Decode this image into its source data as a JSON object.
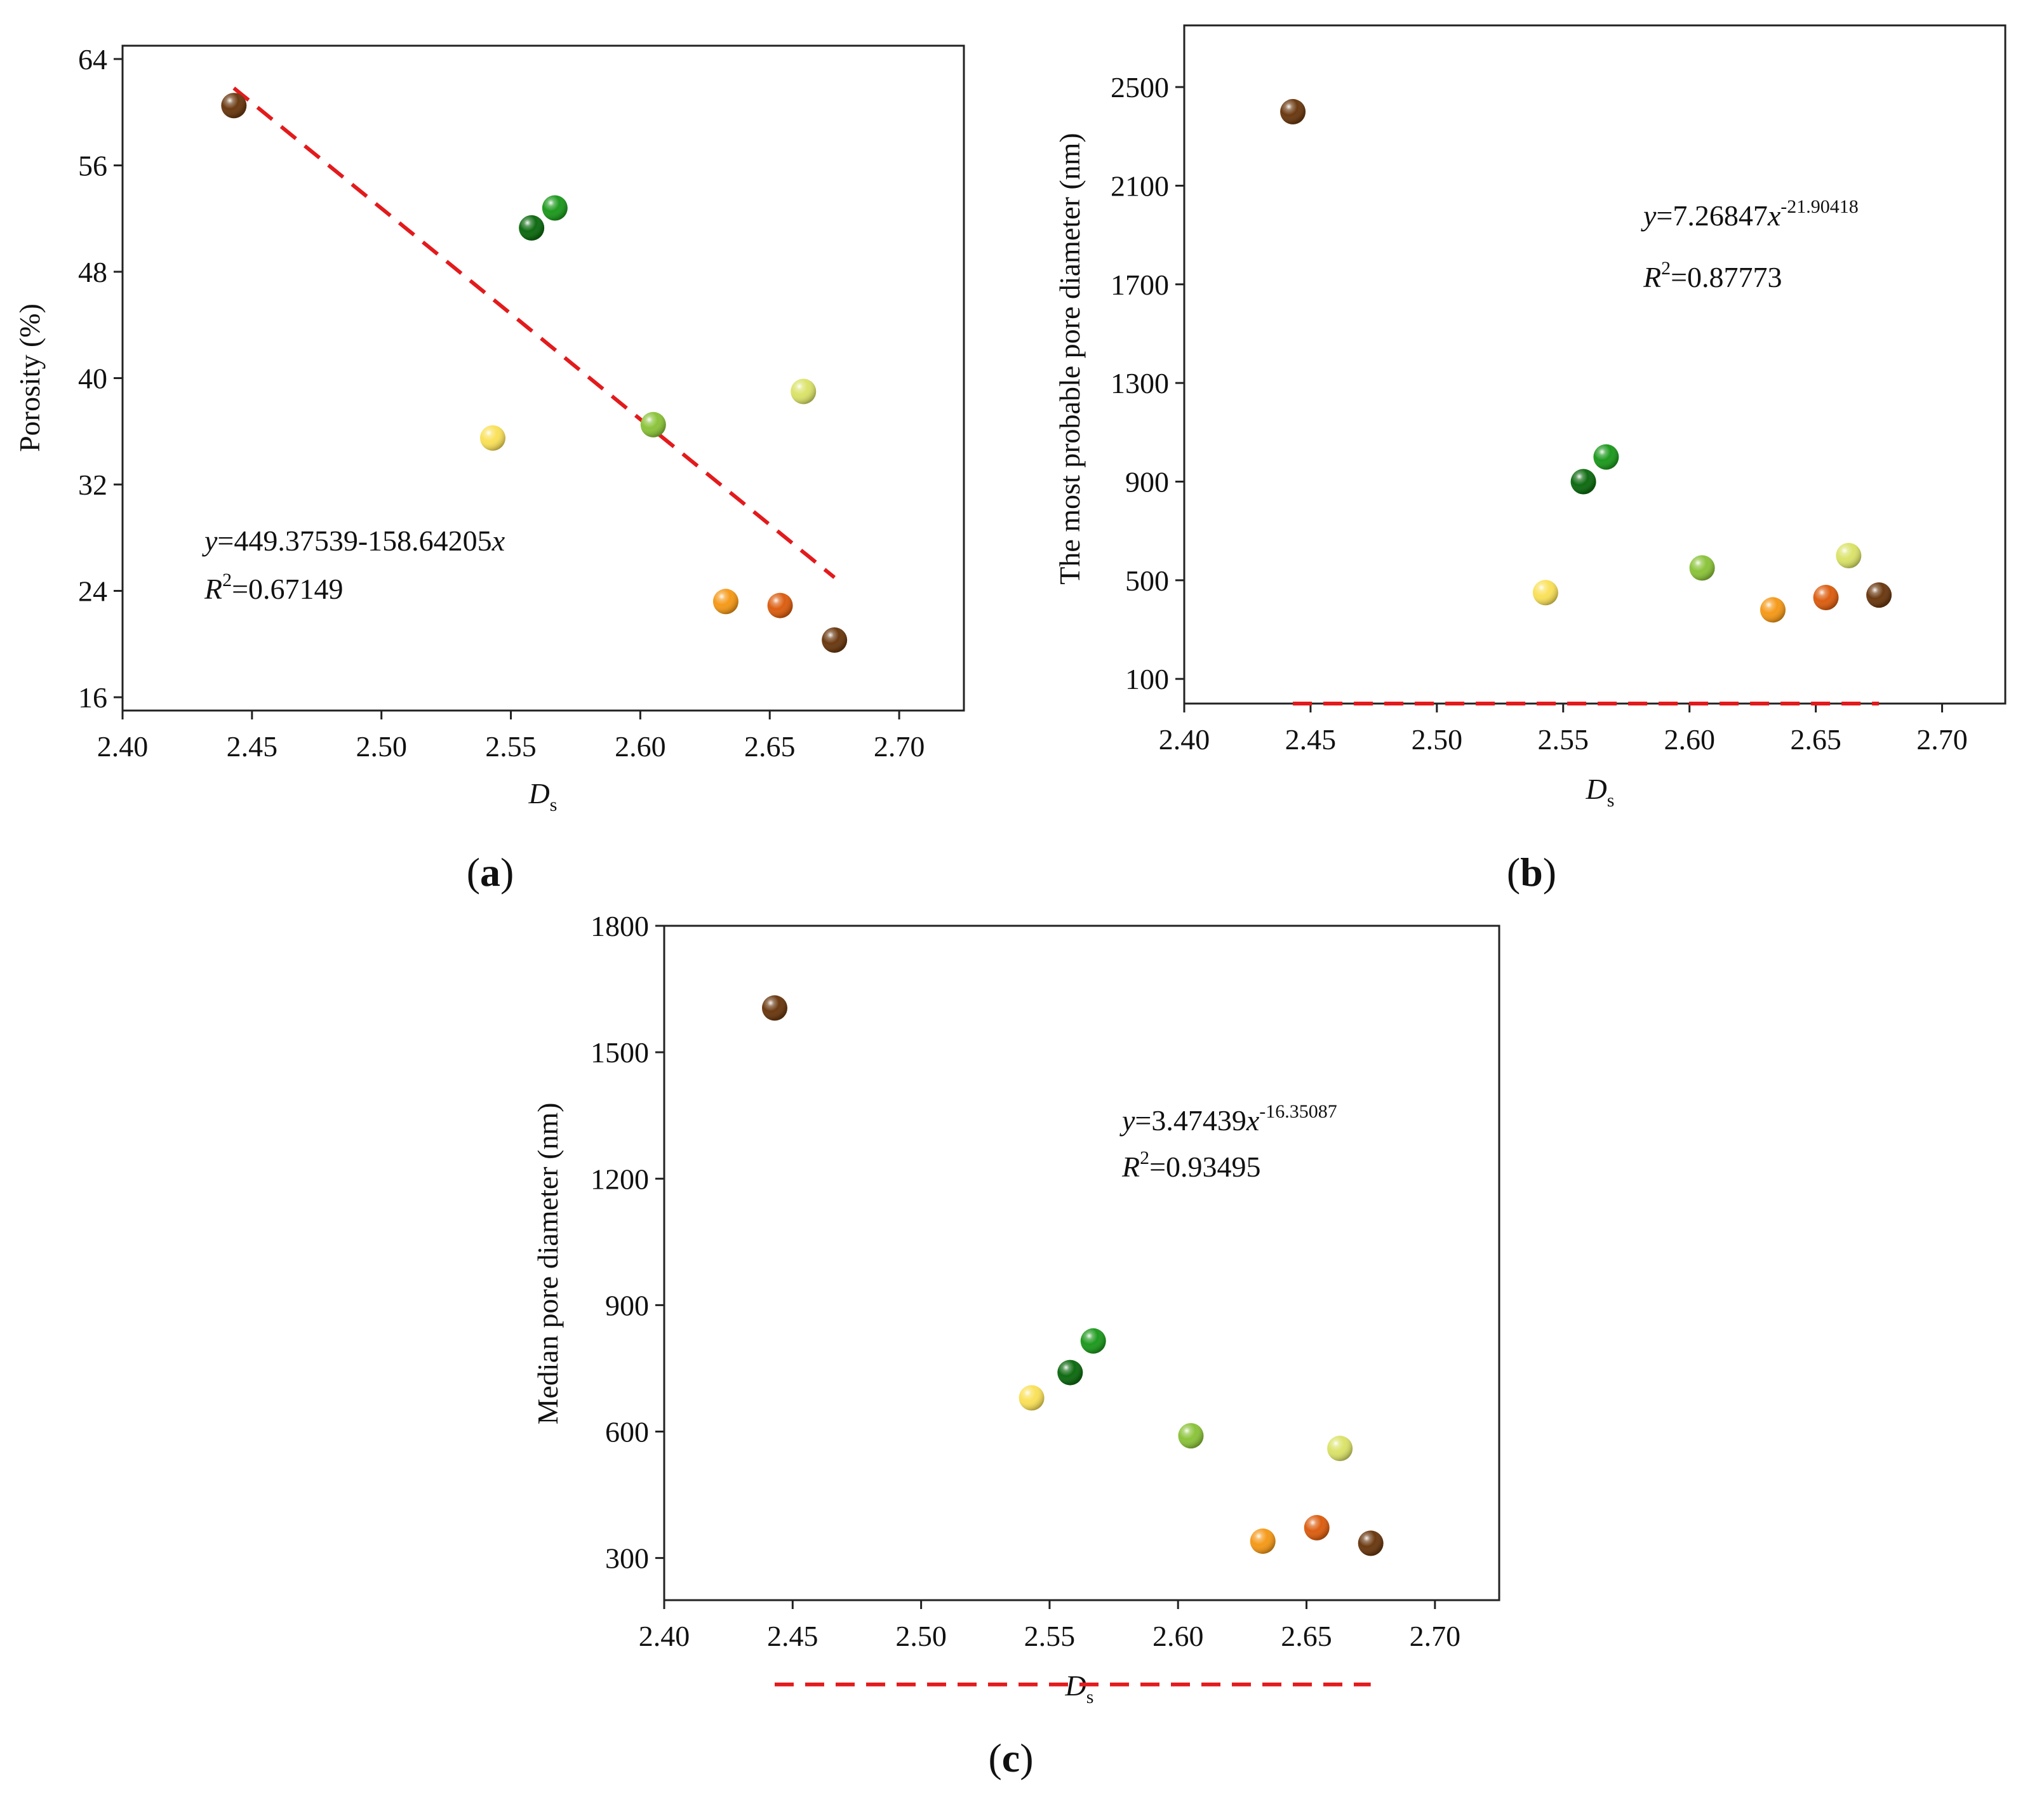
{
  "figure": {
    "panels": [
      "a",
      "b",
      "c"
    ]
  },
  "colors": {
    "trend": "#e31a1c",
    "axis": "#222222",
    "dark_brown": "#6b3a12",
    "dark_green": "#0f6b12",
    "green": "#1f9a1f",
    "yellow": "#fae15a",
    "light_green": "#8cc43c",
    "yellow_green": "#dbe36a",
    "orange": "#f59a1a",
    "dark_orange": "#dc5f12"
  },
  "chart_data": [
    {
      "id": "a",
      "type": "scatter",
      "panel_label": "a",
      "xlabel": "D",
      "xlabel_sub": "s",
      "ylabel": "Porosity (%)",
      "xlim": [
        2.4,
        2.725
      ],
      "ylim": [
        15,
        65
      ],
      "xticks": [
        "2.40",
        "2.45",
        "2.50",
        "2.55",
        "2.60",
        "2.65",
        "2.70"
      ],
      "yticks": [
        "16",
        "24",
        "32",
        "40",
        "48",
        "56",
        "64"
      ],
      "points": [
        {
          "x": 2.443,
          "y": 60.5,
          "color": "dark_brown"
        },
        {
          "x": 2.558,
          "y": 51.3,
          "color": "dark_green"
        },
        {
          "x": 2.567,
          "y": 52.8,
          "color": "green"
        },
        {
          "x": 2.543,
          "y": 35.5,
          "color": "yellow"
        },
        {
          "x": 2.605,
          "y": 36.5,
          "color": "light_green"
        },
        {
          "x": 2.663,
          "y": 39.0,
          "color": "yellow_green"
        },
        {
          "x": 2.633,
          "y": 23.2,
          "color": "orange"
        },
        {
          "x": 2.654,
          "y": 22.9,
          "color": "dark_orange"
        },
        {
          "x": 2.675,
          "y": 20.3,
          "color": "dark_brown"
        }
      ],
      "fit": {
        "model": "linear",
        "a": 449.37539,
        "b": -158.64205,
        "x_from": 2.443,
        "x_to": 2.675
      },
      "equation": {
        "y_var": "y",
        "eq_main": "=449.37539-158.64205",
        "x_var": "x",
        "exponent": "",
        "r_var": "R",
        "r_sup": "2",
        "r_value": "=0.67149"
      }
    },
    {
      "id": "b",
      "type": "scatter",
      "panel_label": "b",
      "xlabel": "D",
      "xlabel_sub": "s",
      "ylabel": "The most probable pore diameter (nm)",
      "xlim": [
        2.4,
        2.725
      ],
      "ylim": [
        0,
        2750
      ],
      "xticks": [
        "2.40",
        "2.45",
        "2.50",
        "2.55",
        "2.60",
        "2.65",
        "2.70"
      ],
      "yticks": [
        "100",
        "500",
        "900",
        "1300",
        "1700",
        "2100",
        "2500"
      ],
      "points": [
        {
          "x": 2.443,
          "y": 2400,
          "color": "dark_brown"
        },
        {
          "x": 2.558,
          "y": 900,
          "color": "dark_green"
        },
        {
          "x": 2.567,
          "y": 1000,
          "color": "green"
        },
        {
          "x": 2.543,
          "y": 450,
          "color": "yellow"
        },
        {
          "x": 2.605,
          "y": 550,
          "color": "light_green"
        },
        {
          "x": 2.663,
          "y": 600,
          "color": "yellow_green"
        },
        {
          "x": 2.633,
          "y": 380,
          "color": "orange"
        },
        {
          "x": 2.654,
          "y": 430,
          "color": "dark_orange"
        },
        {
          "x": 2.675,
          "y": 440,
          "color": "dark_brown"
        }
      ],
      "fit": {
        "model": "power",
        "a": 7.26847,
        "b": -21.90418,
        "x_from": 2.443,
        "x_to": 2.675
      },
      "equation": {
        "y_var": "y",
        "eq_main": "=7.26847",
        "x_var": "x",
        "exponent": "-21.90418",
        "r_var": "R",
        "r_sup": "2",
        "r_value": "=0.87773"
      }
    },
    {
      "id": "c",
      "type": "scatter",
      "panel_label": "c",
      "xlabel": "D",
      "xlabel_sub": "s",
      "ylabel": "Median pore diameter (nm)",
      "xlim": [
        2.4,
        2.725
      ],
      "ylim": [
        200,
        1800
      ],
      "xticks": [
        "2.40",
        "2.45",
        "2.50",
        "2.55",
        "2.60",
        "2.65",
        "2.70"
      ],
      "yticks": [
        "300",
        "600",
        "900",
        "1200",
        "1500",
        "1800"
      ],
      "points": [
        {
          "x": 2.443,
          "y": 1605,
          "color": "dark_brown"
        },
        {
          "x": 2.558,
          "y": 740,
          "color": "dark_green"
        },
        {
          "x": 2.567,
          "y": 815,
          "color": "green"
        },
        {
          "x": 2.543,
          "y": 680,
          "color": "yellow"
        },
        {
          "x": 2.605,
          "y": 590,
          "color": "light_green"
        },
        {
          "x": 2.663,
          "y": 560,
          "color": "yellow_green"
        },
        {
          "x": 2.633,
          "y": 340,
          "color": "orange"
        },
        {
          "x": 2.654,
          "y": 372,
          "color": "dark_orange"
        },
        {
          "x": 2.675,
          "y": 335,
          "color": "dark_brown"
        }
      ],
      "fit": {
        "model": "power",
        "a": 3.47439,
        "b": -16.35087,
        "x_from": 2.443,
        "x_to": 2.675
      },
      "equation": {
        "y_var": "y",
        "eq_main": "=3.47439",
        "x_var": "x",
        "exponent": "-16.35087",
        "r_var": "R",
        "r_sup": "2",
        "r_value": "=0.93495"
      }
    }
  ]
}
